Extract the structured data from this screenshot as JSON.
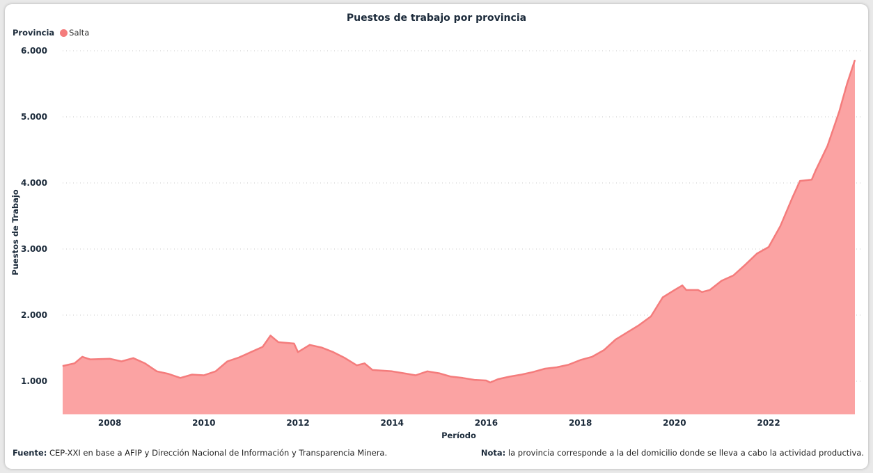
{
  "chart_data": {
    "type": "area",
    "title": "Puestos de trabajo por provincia",
    "legend": {
      "title": "Provincia",
      "placement": "top-left"
    },
    "xlabel": "Período",
    "ylabel": "Puestos de Trabajo",
    "ylim": [
      500,
      6000
    ],
    "yticks": [
      1000,
      2000,
      3000,
      4000,
      5000,
      6000
    ],
    "ytick_labels": [
      "1.000",
      "2.000",
      "3.000",
      "4.000",
      "5.000",
      "6.000"
    ],
    "xticks": [
      "2008",
      "2010",
      "2012",
      "2014",
      "2016",
      "2018",
      "2020",
      "2022"
    ],
    "grid": "horizontal dotted",
    "series": [
      {
        "name": "Salta",
        "color": "#f47c7c",
        "fill": "#fba3a3",
        "x": [
          "2007-01",
          "2007-04",
          "2007-06",
          "2007-08",
          "2008-01",
          "2008-04",
          "2008-07",
          "2008-10",
          "2009-01",
          "2009-04",
          "2009-07",
          "2009-10",
          "2010-01",
          "2010-04",
          "2010-07",
          "2010-10",
          "2011-01",
          "2011-04",
          "2011-06",
          "2011-08",
          "2011-12",
          "2012-01",
          "2012-04",
          "2012-07",
          "2012-10",
          "2013-01",
          "2013-04",
          "2013-06",
          "2013-08",
          "2014-01",
          "2014-04",
          "2014-07",
          "2014-10",
          "2015-01",
          "2015-04",
          "2015-07",
          "2015-10",
          "2016-01",
          "2016-02",
          "2016-04",
          "2016-07",
          "2016-10",
          "2017-01",
          "2017-04",
          "2017-07",
          "2017-10",
          "2018-01",
          "2018-04",
          "2018-07",
          "2018-10",
          "2019-01",
          "2019-04",
          "2019-07",
          "2019-10",
          "2020-01",
          "2020-03",
          "2020-04",
          "2020-07",
          "2020-08",
          "2020-10",
          "2021-01",
          "2021-04",
          "2021-07",
          "2021-10",
          "2022-01",
          "2022-04",
          "2022-07",
          "2022-09",
          "2022-12",
          "2023-01",
          "2023-04",
          "2023-07",
          "2023-09",
          "2023-11"
        ],
        "values": [
          1230,
          1270,
          1370,
          1330,
          1340,
          1300,
          1350,
          1270,
          1150,
          1110,
          1050,
          1100,
          1090,
          1150,
          1300,
          1360,
          1440,
          1520,
          1690,
          1590,
          1570,
          1440,
          1550,
          1510,
          1440,
          1350,
          1240,
          1270,
          1170,
          1150,
          1120,
          1090,
          1150,
          1120,
          1070,
          1050,
          1020,
          1010,
          980,
          1030,
          1070,
          1100,
          1140,
          1190,
          1210,
          1250,
          1320,
          1370,
          1470,
          1630,
          1740,
          1850,
          1980,
          2270,
          2380,
          2450,
          2380,
          2380,
          2350,
          2380,
          2520,
          2600,
          2760,
          2930,
          3030,
          3350,
          3770,
          4030,
          4050,
          4190,
          4560,
          5080,
          5500,
          5860
        ]
      }
    ]
  },
  "footer": {
    "source_label": "Fuente:",
    "source_text": " CEP-XXI en base a AFIP y Dirección Nacional de Información y Transparencia Minera.",
    "note_label": "Nota:",
    "note_text": " la provincia corresponde a la del domicilio donde se lleva a cabo la actividad productiva."
  }
}
